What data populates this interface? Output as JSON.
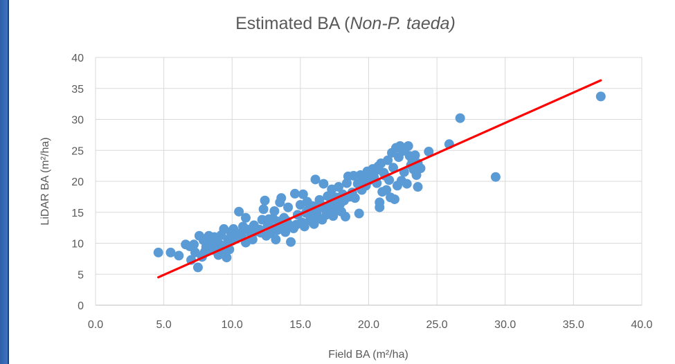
{
  "chart_data": {
    "type": "scatter",
    "title_prefix": "Estimated BA (",
    "title_italic": "Non-P. taeda)",
    "xlabel": "Field BA  (m²/ha)",
    "ylabel": "LiDAR BA (m²/ha)",
    "xlim": [
      0,
      40
    ],
    "ylim": [
      0,
      40
    ],
    "x_ticks": [
      "0.0",
      "5.0",
      "10.0",
      "15.0",
      "20.0",
      "25.0",
      "30.0",
      "35.0",
      "40.0"
    ],
    "y_ticks": [
      "0",
      "5",
      "10",
      "15",
      "20",
      "25",
      "30",
      "35",
      "40"
    ],
    "grid": true,
    "legend": false,
    "point_color": "#5b9bd5",
    "line_color": "#ff0000",
    "trendline": {
      "x": [
        4.6,
        37.0
      ],
      "y": [
        4.5,
        36.3
      ]
    },
    "points": [
      [
        4.6,
        8.5
      ],
      [
        5.5,
        8.5
      ],
      [
        6.1,
        8.0
      ],
      [
        6.6,
        9.8
      ],
      [
        6.9,
        9.5
      ],
      [
        7.0,
        7.3
      ],
      [
        7.2,
        9.8
      ],
      [
        7.3,
        8.5
      ],
      [
        7.5,
        6.1
      ],
      [
        7.6,
        11.2
      ],
      [
        7.8,
        7.8
      ],
      [
        7.9,
        10.5
      ],
      [
        8.0,
        8.6
      ],
      [
        8.1,
        9.4
      ],
      [
        8.2,
        10.9
      ],
      [
        8.3,
        11.2
      ],
      [
        8.4,
        9.8
      ],
      [
        8.5,
        10.3
      ],
      [
        8.6,
        8.9
      ],
      [
        8.7,
        11.0
      ],
      [
        8.8,
        9.6
      ],
      [
        8.9,
        10.2
      ],
      [
        9.0,
        8.1
      ],
      [
        9.1,
        9.8
      ],
      [
        9.2,
        11.3
      ],
      [
        9.3,
        8.3
      ],
      [
        9.4,
        12.3
      ],
      [
        9.5,
        9.6
      ],
      [
        9.6,
        7.7
      ],
      [
        9.7,
        10.6
      ],
      [
        9.8,
        9.0
      ],
      [
        9.9,
        11.8
      ],
      [
        10.0,
        10.4
      ],
      [
        10.1,
        12.3
      ],
      [
        10.2,
        11.1
      ],
      [
        10.3,
        10.7
      ],
      [
        10.5,
        15.1
      ],
      [
        10.6,
        11.6
      ],
      [
        10.7,
        11.2
      ],
      [
        10.8,
        12.7
      ],
      [
        11.0,
        14.1
      ],
      [
        11.0,
        10.1
      ],
      [
        11.2,
        12.2
      ],
      [
        11.4,
        11.4
      ],
      [
        11.5,
        10.6
      ],
      [
        11.6,
        12.9
      ],
      [
        11.8,
        11.9
      ],
      [
        12.0,
        12.2
      ],
      [
        12.1,
        11.7
      ],
      [
        12.2,
        13.8
      ],
      [
        12.3,
        15.5
      ],
      [
        12.4,
        16.9
      ],
      [
        12.5,
        11.2
      ],
      [
        12.6,
        12.7
      ],
      [
        12.7,
        13.9
      ],
      [
        12.8,
        11.6
      ],
      [
        12.9,
        12.5
      ],
      [
        13.0,
        14.0
      ],
      [
        13.1,
        15.2
      ],
      [
        13.2,
        10.6
      ],
      [
        13.3,
        12.1
      ],
      [
        13.4,
        13.5
      ],
      [
        13.5,
        16.6
      ],
      [
        13.6,
        17.3
      ],
      [
        13.7,
        12.7
      ],
      [
        13.8,
        14.1
      ],
      [
        13.9,
        11.8
      ],
      [
        14.0,
        13.6
      ],
      [
        14.1,
        15.8
      ],
      [
        14.2,
        12.9
      ],
      [
        14.3,
        10.2
      ],
      [
        14.5,
        12.4
      ],
      [
        14.6,
        18.0
      ],
      [
        14.7,
        13.0
      ],
      [
        14.8,
        14.6
      ],
      [
        15.0,
        16.2
      ],
      [
        15.1,
        13.4
      ],
      [
        15.2,
        17.9
      ],
      [
        15.3,
        12.7
      ],
      [
        15.4,
        14.9
      ],
      [
        15.5,
        16.7
      ],
      [
        15.6,
        15.4
      ],
      [
        15.7,
        13.7
      ],
      [
        15.8,
        14.4
      ],
      [
        15.9,
        16.0
      ],
      [
        16.0,
        13.1
      ],
      [
        16.1,
        20.3
      ],
      [
        16.2,
        15.0
      ],
      [
        16.3,
        14.1
      ],
      [
        16.4,
        17.0
      ],
      [
        16.5,
        16.2
      ],
      [
        16.6,
        13.8
      ],
      [
        16.7,
        19.6
      ],
      [
        16.8,
        15.6
      ],
      [
        16.9,
        14.6
      ],
      [
        17.0,
        17.6
      ],
      [
        17.1,
        16.1
      ],
      [
        17.2,
        15.0
      ],
      [
        17.3,
        18.7
      ],
      [
        17.4,
        14.4
      ],
      [
        17.5,
        16.6
      ],
      [
        17.6,
        17.4
      ],
      [
        17.7,
        15.6
      ],
      [
        17.8,
        19.1
      ],
      [
        17.9,
        16.3
      ],
      [
        18.0,
        15.1
      ],
      [
        18.1,
        17.9
      ],
      [
        18.2,
        16.9
      ],
      [
        18.3,
        14.3
      ],
      [
        18.4,
        19.7
      ],
      [
        18.5,
        20.8
      ],
      [
        18.6,
        17.5
      ],
      [
        18.8,
        18.2
      ],
      [
        18.9,
        20.9
      ],
      [
        19.0,
        17.3
      ],
      [
        19.2,
        19.6
      ],
      [
        19.3,
        14.8
      ],
      [
        19.4,
        21.0
      ],
      [
        19.5,
        18.6
      ],
      [
        19.6,
        20.3
      ],
      [
        19.8,
        19.3
      ],
      [
        19.9,
        21.6
      ],
      [
        20.0,
        20.1
      ],
      [
        20.1,
        21.2
      ],
      [
        20.3,
        22.0
      ],
      [
        20.4,
        20.6
      ],
      [
        20.5,
        21.7
      ],
      [
        20.6,
        19.7
      ],
      [
        20.7,
        22.4
      ],
      [
        20.8,
        16.6
      ],
      [
        20.8,
        15.8
      ],
      [
        20.9,
        22.9
      ],
      [
        21.0,
        18.3
      ],
      [
        21.1,
        21.4
      ],
      [
        21.2,
        20.9
      ],
      [
        21.3,
        18.6
      ],
      [
        21.4,
        23.4
      ],
      [
        21.5,
        20.2
      ],
      [
        21.6,
        17.4
      ],
      [
        21.7,
        24.6
      ],
      [
        21.8,
        22.2
      ],
      [
        21.9,
        17.1
      ],
      [
        22.0,
        25.4
      ],
      [
        22.1,
        19.3
      ],
      [
        22.2,
        23.9
      ],
      [
        22.3,
        25.7
      ],
      [
        22.4,
        20.1
      ],
      [
        22.5,
        24.9
      ],
      [
        22.6,
        21.5
      ],
      [
        22.7,
        25.4
      ],
      [
        22.8,
        19.6
      ],
      [
        22.9,
        25.7
      ],
      [
        23.0,
        24.1
      ],
      [
        23.1,
        22.6
      ],
      [
        23.2,
        23.3
      ],
      [
        23.3,
        21.9
      ],
      [
        23.4,
        24.2
      ],
      [
        23.5,
        21.0
      ],
      [
        23.6,
        22.9
      ],
      [
        23.6,
        19.1
      ],
      [
        23.8,
        22.1
      ],
      [
        24.4,
        24.8
      ],
      [
        25.9,
        26.0
      ],
      [
        26.7,
        30.2
      ],
      [
        29.3,
        20.7
      ],
      [
        37.0,
        33.7
      ]
    ]
  }
}
